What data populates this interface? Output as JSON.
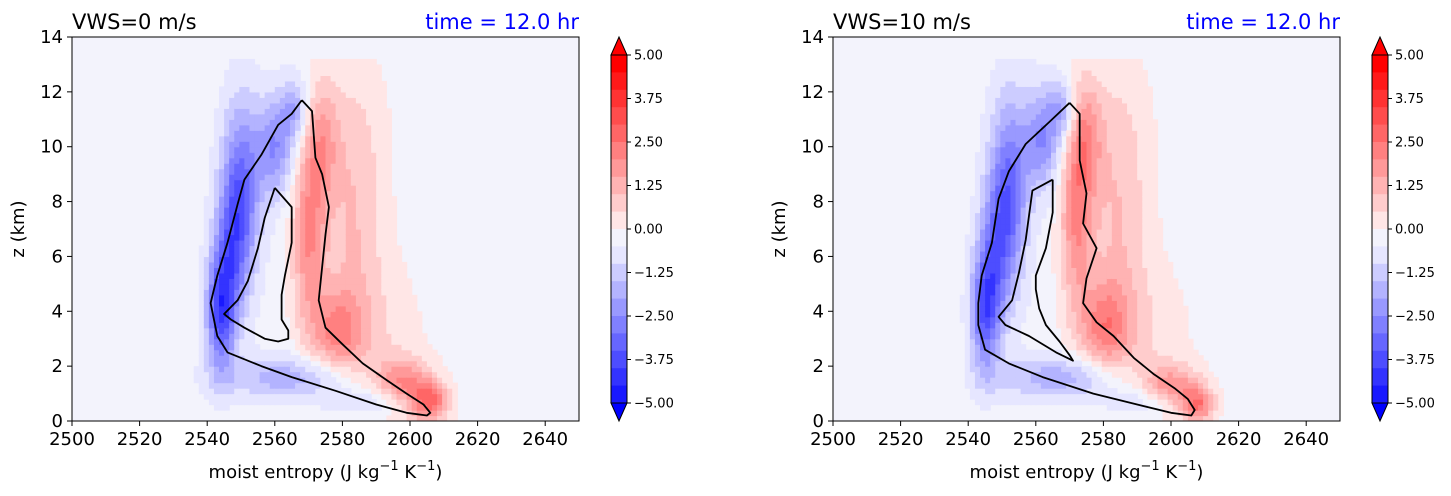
{
  "chart_data": [
    {
      "type": "heatmap",
      "title_left": "VWS=0 m/s",
      "title_right": "time = 12.0 hr",
      "title_right_color": "#0000ff",
      "xlabel": "moist entropy (J kg",
      "xlabel_unit_suffix": "K",
      "xlabel_superscript": "−1",
      "xlabel_close": ")",
      "ylabel": "z (km)",
      "xlim": [
        2500,
        2650
      ],
      "ylim": [
        0,
        14
      ],
      "x_ticks": [
        "2500",
        "2520",
        "2540",
        "2560",
        "2580",
        "2600",
        "2620",
        "2640"
      ],
      "x_tick_values": [
        2500,
        2520,
        2540,
        2560,
        2580,
        2600,
        2620,
        2640
      ],
      "y_ticks": [
        "0",
        "2",
        "4",
        "6",
        "8",
        "10",
        "12",
        "14"
      ],
      "y_tick_values": [
        0,
        2,
        4,
        6,
        8,
        10,
        12,
        14
      ],
      "colorbar": {
        "range": [
          -5,
          5
        ],
        "tick_labels": [
          "5.00",
          "3.75",
          "2.50",
          "1.25",
          "0.00",
          "−1.25",
          "−2.50",
          "−3.75",
          "−5.00"
        ],
        "tick_values": [
          5,
          3.75,
          2.5,
          1.25,
          0,
          -1.25,
          -2.5,
          -3.75,
          -5
        ],
        "extend": "both",
        "cmap": "bwr"
      },
      "contour_outer": [
        [
          2568,
          11.7
        ],
        [
          2571,
          11.3
        ],
        [
          2572,
          9.6
        ],
        [
          2574,
          9.0
        ],
        [
          2576,
          7.8
        ],
        [
          2575,
          6.8
        ],
        [
          2574,
          5.6
        ],
        [
          2573,
          4.4
        ],
        [
          2575,
          3.4
        ],
        [
          2580,
          2.8
        ],
        [
          2586,
          2.1
        ],
        [
          2593,
          1.5
        ],
        [
          2599,
          1
        ],
        [
          2604,
          0.6
        ],
        [
          2606,
          0.3
        ],
        [
          2605,
          0.2
        ],
        [
          2599,
          0.3
        ],
        [
          2590,
          0.6
        ],
        [
          2578,
          1.1
        ],
        [
          2565,
          1.6
        ],
        [
          2556,
          2
        ],
        [
          2546,
          2.5
        ],
        [
          2543,
          3.1
        ],
        [
          2541,
          4.3
        ],
        [
          2543,
          5.3
        ],
        [
          2546,
          6.5
        ],
        [
          2549,
          7.9
        ],
        [
          2551,
          8.8
        ],
        [
          2556,
          9.7
        ],
        [
          2561,
          10.8
        ],
        [
          2565,
          11.2
        ],
        [
          2568,
          11.7
        ]
      ],
      "contour_inner": [
        [
          2560,
          8.5
        ],
        [
          2565,
          7.8
        ],
        [
          2565,
          6.5
        ],
        [
          2563,
          5.3
        ],
        [
          2562,
          4.6
        ],
        [
          2562,
          3.7
        ],
        [
          2564,
          3.3
        ],
        [
          2564,
          3.0
        ],
        [
          2561,
          2.9
        ],
        [
          2557,
          3.0
        ],
        [
          2551,
          3.4
        ],
        [
          2547,
          3.7
        ],
        [
          2545,
          3.9
        ],
        [
          2549,
          4.4
        ],
        [
          2552,
          5.1
        ],
        [
          2555,
          6.3
        ],
        [
          2557,
          7.4
        ],
        [
          2560,
          8.5
        ]
      ],
      "field_blobs": [
        {
          "v": -2.8,
          "x": 2550,
          "y": 8.4,
          "sx": 4,
          "sy": 2.3
        },
        {
          "v": -3.4,
          "x": 2544,
          "y": 4,
          "sx": 3,
          "sy": 1.5
        },
        {
          "v": -2.2,
          "x": 2560,
          "y": 10,
          "sx": 4,
          "sy": 1.3
        },
        {
          "v": -1.8,
          "x": 2547,
          "y": 6.2,
          "sx": 3.5,
          "sy": 1.8
        },
        {
          "v": -1.6,
          "x": 2566,
          "y": 11.4,
          "sx": 2.8,
          "sy": 0.8
        },
        {
          "v": -1.6,
          "x": 2565,
          "y": 1.6,
          "sx": 14,
          "sy": 0.55
        },
        {
          "v": -1.4,
          "x": 2590,
          "y": 0.7,
          "sx": 10,
          "sy": 0.4
        },
        {
          "v": 2.2,
          "x": 2570,
          "y": 6.8,
          "sx": 3.5,
          "sy": 2.4
        },
        {
          "v": 1.6,
          "x": 2574,
          "y": 10.2,
          "sx": 3.5,
          "sy": 1.6
        },
        {
          "v": 1.8,
          "x": 2578,
          "y": 3.3,
          "sx": 5,
          "sy": 1
        },
        {
          "v": 2.2,
          "x": 2598,
          "y": 1.3,
          "sx": 6,
          "sy": 0.7
        },
        {
          "v": 2.8,
          "x": 2606,
          "y": 0.7,
          "sx": 4,
          "sy": 0.5
        },
        {
          "v": 1,
          "x": 2583,
          "y": 6.5,
          "sx": 6,
          "sy": 4
        },
        {
          "v": 0.6,
          "x": 2590,
          "y": 3,
          "sx": 10,
          "sy": 2.2
        },
        {
          "v": 0.4,
          "x": 2585,
          "y": 10,
          "sx": 7,
          "sy": 2.5
        }
      ]
    },
    {
      "type": "heatmap",
      "title_left": "VWS=10 m/s",
      "title_right": "time = 12.0 hr",
      "title_right_color": "#0000ff",
      "xlabel": "moist entropy (J kg",
      "xlabel_unit_suffix": "K",
      "xlabel_superscript": "−1",
      "xlabel_close": ")",
      "ylabel": "z (km)",
      "xlim": [
        2500,
        2650
      ],
      "ylim": [
        0,
        14
      ],
      "x_ticks": [
        "2500",
        "2520",
        "2540",
        "2560",
        "2580",
        "2600",
        "2620",
        "2640"
      ],
      "x_tick_values": [
        2500,
        2520,
        2540,
        2560,
        2580,
        2600,
        2620,
        2640
      ],
      "y_ticks": [
        "0",
        "2",
        "4",
        "6",
        "8",
        "10",
        "12",
        "14"
      ],
      "y_tick_values": [
        0,
        2,
        4,
        6,
        8,
        10,
        12,
        14
      ],
      "colorbar": {
        "range": [
          -5,
          5
        ],
        "tick_labels": [
          "5.00",
          "3.75",
          "2.50",
          "1.25",
          "0.00",
          "−1.25",
          "−2.50",
          "−3.75",
          "−5.00"
        ],
        "tick_values": [
          5,
          3.75,
          2.5,
          1.25,
          0,
          -1.25,
          -2.5,
          -3.75,
          -5
        ],
        "extend": "both",
        "cmap": "bwr"
      },
      "contour_outer": [
        [
          2570,
          11.6
        ],
        [
          2573,
          11.2
        ],
        [
          2573,
          9.5
        ],
        [
          2575,
          8.3
        ],
        [
          2574,
          7.2
        ],
        [
          2578,
          6.3
        ],
        [
          2575,
          5.2
        ],
        [
          2574,
          4.3
        ],
        [
          2578,
          3.6
        ],
        [
          2583,
          3.1
        ],
        [
          2589,
          2.3
        ],
        [
          2595,
          1.7
        ],
        [
          2601,
          1.2
        ],
        [
          2605,
          0.8
        ],
        [
          2607,
          0.4
        ],
        [
          2606,
          0.2
        ],
        [
          2600,
          0.3
        ],
        [
          2590,
          0.6
        ],
        [
          2577,
          1.0
        ],
        [
          2562,
          1.6
        ],
        [
          2552,
          2.1
        ],
        [
          2545,
          2.6
        ],
        [
          2543,
          3.5
        ],
        [
          2543,
          4.3
        ],
        [
          2544,
          5.3
        ],
        [
          2547,
          6.5
        ],
        [
          2549,
          8.1
        ],
        [
          2552,
          9.1
        ],
        [
          2557,
          10.1
        ],
        [
          2564,
          10.9
        ],
        [
          2570,
          11.6
        ]
      ],
      "contour_inner": [
        [
          2565,
          8.8
        ],
        [
          2565,
          7.6
        ],
        [
          2563,
          6.3
        ],
        [
          2560,
          5.3
        ],
        [
          2560,
          4.8
        ],
        [
          2561,
          4.1
        ],
        [
          2563,
          3.5
        ],
        [
          2567,
          2.9
        ],
        [
          2570,
          2.4
        ],
        [
          2571,
          2.2
        ],
        [
          2566,
          2.5
        ],
        [
          2558,
          3.1
        ],
        [
          2551,
          3.5
        ],
        [
          2549,
          3.8
        ],
        [
          2553,
          4.4
        ],
        [
          2555,
          5.4
        ],
        [
          2557,
          6.6
        ],
        [
          2559,
          8.4
        ],
        [
          2565,
          8.8
        ]
      ],
      "field_blobs": [
        {
          "v": -2.8,
          "x": 2552,
          "y": 8.4,
          "sx": 4,
          "sy": 2.4
        },
        {
          "v": -3.1,
          "x": 2545,
          "y": 4,
          "sx": 3,
          "sy": 1.5
        },
        {
          "v": -2.2,
          "x": 2562,
          "y": 10.3,
          "sx": 4,
          "sy": 1.3
        },
        {
          "v": -1.8,
          "x": 2548,
          "y": 6.2,
          "sx": 3.5,
          "sy": 1.8
        },
        {
          "v": -1.6,
          "x": 2568,
          "y": 11.4,
          "sx": 2.8,
          "sy": 0.7
        },
        {
          "v": -1.6,
          "x": 2568,
          "y": 1.6,
          "sx": 14,
          "sy": 0.55
        },
        {
          "v": -1.3,
          "x": 2592,
          "y": 0.7,
          "sx": 10,
          "sy": 0.4
        },
        {
          "v": 2.2,
          "x": 2572,
          "y": 7.5,
          "sx": 3.5,
          "sy": 2.4
        },
        {
          "v": 1.6,
          "x": 2575,
          "y": 10.4,
          "sx": 3.5,
          "sy": 1.5
        },
        {
          "v": 1.8,
          "x": 2580,
          "y": 3.5,
          "sx": 5,
          "sy": 1.1
        },
        {
          "v": 2.2,
          "x": 2600,
          "y": 1.2,
          "sx": 6,
          "sy": 0.6
        },
        {
          "v": 2.6,
          "x": 2608,
          "y": 0.6,
          "sx": 3.5,
          "sy": 0.45
        },
        {
          "v": 1,
          "x": 2584,
          "y": 6.5,
          "sx": 6,
          "sy": 4
        },
        {
          "v": 0.6,
          "x": 2592,
          "y": 3,
          "sx": 10,
          "sy": 2.2
        },
        {
          "v": 0.4,
          "x": 2586,
          "y": 10,
          "sx": 7,
          "sy": 2.5
        }
      ]
    }
  ]
}
